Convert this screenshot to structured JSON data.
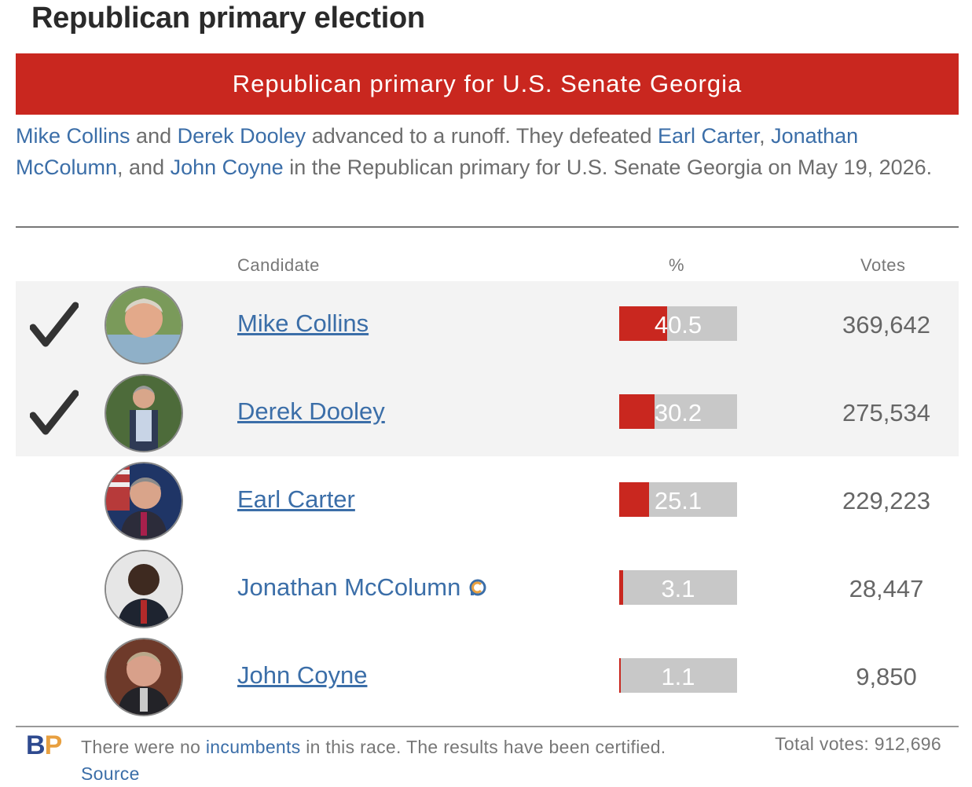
{
  "page": {
    "title": "Republican primary election"
  },
  "race": {
    "banner": "Republican primary for U.S. Senate Georgia",
    "summary": {
      "winner1": "Mike Collins",
      "and1": " and ",
      "winner2": "Derek Dooley",
      "mid": " advanced to a runoff. They defeated ",
      "loser1": "Earl Carter",
      "comma1": ", ",
      "loser2": "Jonathan McColumn",
      "comma2": ", and ",
      "loser3": "John Coyne",
      "end": " in the Republican primary for U.S. Senate Georgia on May 19, 2026."
    }
  },
  "table": {
    "headers": {
      "candidate": "Candidate",
      "percent": "%",
      "votes": "Votes"
    },
    "rows": [
      {
        "name": "Mike Collins",
        "percent": "40.5",
        "percent_value": 40.5,
        "votes": "369,642",
        "advanced": true,
        "avatar_icon": "candidate-photo"
      },
      {
        "name": "Derek Dooley",
        "percent": "30.2",
        "percent_value": 30.2,
        "votes": "275,534",
        "advanced": true,
        "avatar_icon": "candidate-photo"
      },
      {
        "name": "Earl Carter",
        "percent": "25.1",
        "percent_value": 25.1,
        "votes": "229,223",
        "advanced": false,
        "avatar_icon": "candidate-photo"
      },
      {
        "name": "Jonathan McColumn",
        "percent": "3.1",
        "percent_value": 3.1,
        "votes": "28,447",
        "advanced": false,
        "avatar_icon": "candidate-photo",
        "badge_icon": "candidate-connection-icon"
      },
      {
        "name": "John Coyne",
        "percent": "1.1",
        "percent_value": 1.1,
        "votes": "9,850",
        "advanced": false,
        "avatar_icon": "candidate-photo"
      }
    ]
  },
  "footer": {
    "logo_b": "B",
    "logo_p": "P",
    "note_prefix": "There were no ",
    "incumbents_link": "incumbents",
    "note_mid": " in this race. The results have been certified. ",
    "source_link": "Source",
    "total_votes": "Total votes: 912,696"
  },
  "colors": {
    "accent_red": "#c9271f",
    "link_blue": "#3b6ea8",
    "bar_gray": "#c8c8c8",
    "winner_bg": "#f3f3f3"
  }
}
